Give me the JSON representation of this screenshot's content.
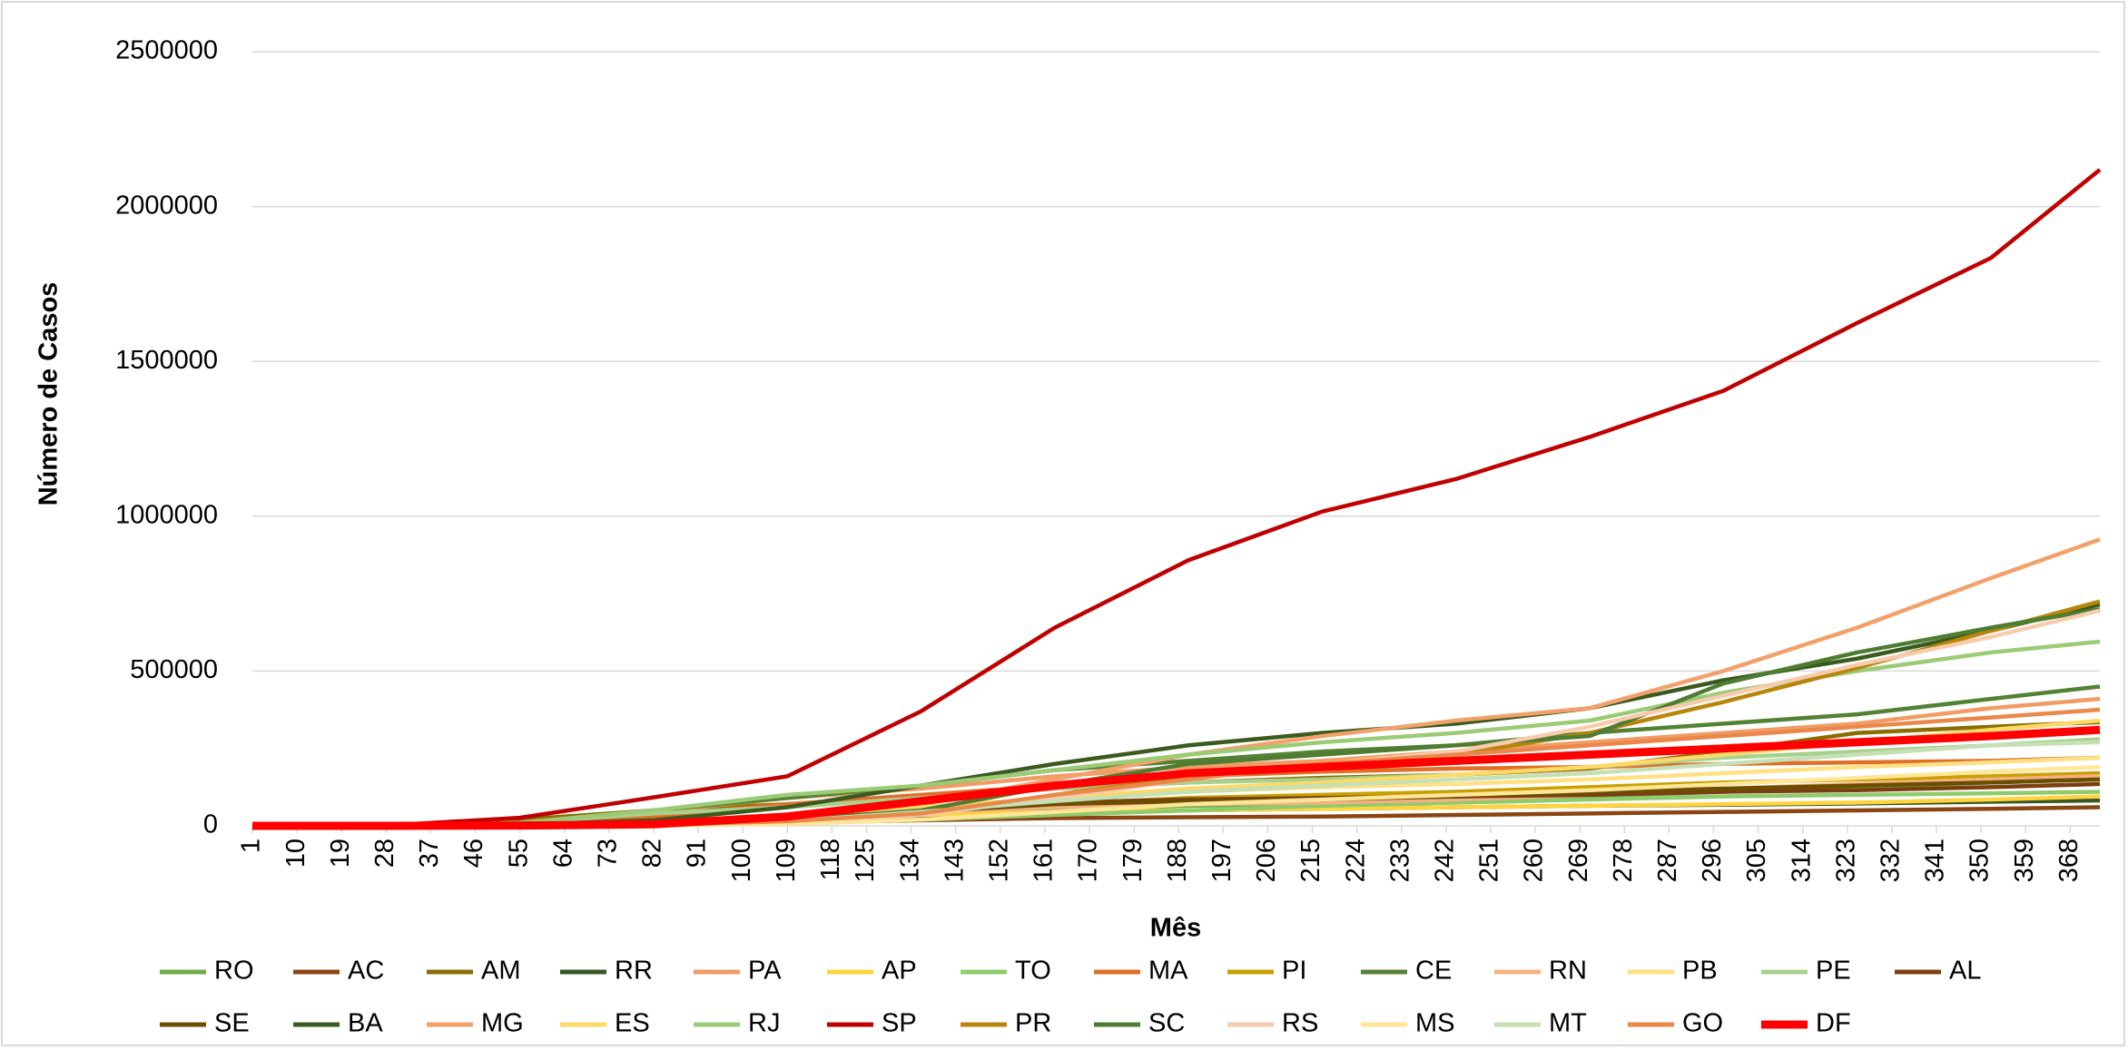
{
  "chart_data": {
    "type": "line",
    "x_label": "Mês",
    "y_label": "Número de Casos",
    "xlim": [
      1,
      374
    ],
    "ylim": [
      0,
      2500000
    ],
    "xticks": [
      1,
      10,
      19,
      28,
      37,
      46,
      55,
      64,
      73,
      82,
      91,
      100,
      109,
      118,
      125,
      134,
      143,
      152,
      161,
      170,
      179,
      188,
      197,
      206,
      215,
      224,
      233,
      242,
      251,
      260,
      269,
      278,
      287,
      296,
      305,
      314,
      323,
      332,
      341,
      350,
      359,
      368
    ],
    "yticks": [
      0,
      500000,
      1000000,
      1500000,
      2000000,
      2500000
    ],
    "grid": true,
    "legend": "bottom",
    "x": [
      1,
      28,
      55,
      82,
      109,
      136,
      163,
      190,
      217,
      244,
      271,
      298,
      325,
      352,
      374
    ],
    "series": [
      {
        "name": "RO",
        "color": "#70AD47",
        "values": [
          0,
          50,
          500,
          3000,
          10000,
          30000,
          50000,
          65000,
          70000,
          80000,
          95000,
          110000,
          125000,
          140000,
          150000
        ]
      },
      {
        "name": "AC",
        "color": "#8B4513",
        "values": [
          0,
          20,
          300,
          3000,
          10000,
          18000,
          25000,
          28000,
          30000,
          35000,
          40000,
          45000,
          50000,
          55000,
          60000
        ]
      },
      {
        "name": "AM",
        "color": "#8C6D00",
        "values": [
          0,
          500,
          20000,
          50000,
          70000,
          90000,
          120000,
          140000,
          155000,
          165000,
          185000,
          240000,
          300000,
          320000,
          335000
        ]
      },
      {
        "name": "RR",
        "color": "#375623",
        "values": [
          0,
          20,
          500,
          3000,
          12000,
          25000,
          40000,
          50000,
          55000,
          60000,
          65000,
          68000,
          72000,
          78000,
          82000
        ]
      },
      {
        "name": "PA",
        "color": "#F19C65",
        "values": [
          0,
          100,
          8000,
          45000,
          90000,
          120000,
          160000,
          190000,
          210000,
          240000,
          270000,
          300000,
          330000,
          380000,
          410000
        ]
      },
      {
        "name": "AP",
        "color": "#FFD43F",
        "values": [
          0,
          20,
          1000,
          8000,
          25000,
          35000,
          45000,
          50000,
          55000,
          60000,
          65000,
          70000,
          75000,
          85000,
          95000
        ]
      },
      {
        "name": "TO",
        "color": "#8FCB6B",
        "values": [
          0,
          20,
          200,
          2000,
          8000,
          20000,
          35000,
          50000,
          65000,
          75000,
          85000,
          95000,
          100000,
          105000,
          110000
        ]
      },
      {
        "name": "MA",
        "color": "#E07028",
        "values": [
          0,
          100,
          5000,
          30000,
          70000,
          100000,
          130000,
          160000,
          175000,
          185000,
          190000,
          200000,
          205000,
          210000,
          220000
        ]
      },
      {
        "name": "PI",
        "color": "#C9A000",
        "values": [
          0,
          50,
          500,
          5000,
          20000,
          45000,
          70000,
          90000,
          100000,
          110000,
          125000,
          140000,
          150000,
          160000,
          170000
        ]
      },
      {
        "name": "CE",
        "color": "#548235",
        "values": [
          0,
          300,
          10000,
          50000,
          90000,
          130000,
          180000,
          210000,
          240000,
          260000,
          300000,
          330000,
          360000,
          410000,
          450000
        ]
      },
      {
        "name": "RN",
        "color": "#F4B183",
        "values": [
          0,
          50,
          1000,
          5000,
          25000,
          45000,
          60000,
          70000,
          75000,
          85000,
          100000,
          120000,
          135000,
          150000,
          160000
        ]
      },
      {
        "name": "PB",
        "color": "#FFE082",
        "values": [
          0,
          50,
          1000,
          8000,
          30000,
          60000,
          90000,
          110000,
          125000,
          135000,
          150000,
          170000,
          190000,
          205000,
          220000
        ]
      },
      {
        "name": "PE",
        "color": "#A9D18E",
        "values": [
          0,
          200,
          10000,
          40000,
          60000,
          90000,
          120000,
          140000,
          150000,
          165000,
          190000,
          220000,
          240000,
          260000,
          280000
        ]
      },
      {
        "name": "AL",
        "color": "#7B3F12",
        "values": [
          0,
          50,
          1000,
          8000,
          30000,
          55000,
          75000,
          85000,
          90000,
          95000,
          100000,
          110000,
          115000,
          125000,
          135000
        ]
      },
      {
        "name": "SE",
        "color": "#6B4E00",
        "values": [
          0,
          50,
          500,
          5000,
          25000,
          45000,
          70000,
          80000,
          85000,
          95000,
          110000,
          120000,
          130000,
          140000,
          150000
        ]
      },
      {
        "name": "BA",
        "color": "#3A5A1E",
        "values": [
          0,
          200,
          4000,
          18000,
          60000,
          130000,
          200000,
          260000,
          300000,
          330000,
          380000,
          470000,
          540000,
          630000,
          715000
        ]
      },
      {
        "name": "MG",
        "color": "#F2A16A",
        "values": [
          0,
          100,
          2000,
          8000,
          30000,
          70000,
          150000,
          230000,
          290000,
          340000,
          380000,
          500000,
          640000,
          800000,
          925000
        ]
      },
      {
        "name": "ES",
        "color": "#FFD966",
        "values": [
          0,
          100,
          2000,
          10000,
          35000,
          60000,
          90000,
          120000,
          140000,
          165000,
          190000,
          230000,
          270000,
          310000,
          340000
        ]
      },
      {
        "name": "RJ",
        "color": "#9BCB75",
        "values": [
          0,
          500,
          10000,
          50000,
          100000,
          130000,
          180000,
          230000,
          270000,
          300000,
          340000,
          430000,
          500000,
          560000,
          595000
        ]
      },
      {
        "name": "SP",
        "color": "#C00000",
        "values": [
          0,
          1000,
          26000,
          92000,
          160000,
          370000,
          640000,
          858000,
          1015000,
          1120000,
          1256000,
          1405000,
          1624000,
          1834000,
          2119000
        ]
      },
      {
        "name": "PR",
        "color": "#B8860B",
        "values": [
          0,
          100,
          1000,
          3000,
          10000,
          35000,
          100000,
          160000,
          200000,
          230000,
          300000,
          400000,
          510000,
          630000,
          725000
        ]
      },
      {
        "name": "SC",
        "color": "#4E7D32",
        "values": [
          0,
          200,
          1500,
          5000,
          18000,
          50000,
          130000,
          200000,
          230000,
          260000,
          290000,
          460000,
          560000,
          640000,
          700000
        ]
      },
      {
        "name": "RS",
        "color": "#F8CBAD",
        "values": [
          0,
          100,
          1000,
          3000,
          12000,
          35000,
          90000,
          150000,
          200000,
          240000,
          320000,
          420000,
          520000,
          610000,
          695000
        ]
      },
      {
        "name": "MS",
        "color": "#FFE699",
        "values": [
          0,
          50,
          200,
          1000,
          5000,
          20000,
          45000,
          70000,
          85000,
          100000,
          115000,
          135000,
          155000,
          175000,
          190000
        ]
      },
      {
        "name": "MT",
        "color": "#C5E0B4",
        "values": [
          0,
          50,
          300,
          2000,
          15000,
          45000,
          80000,
          110000,
          130000,
          150000,
          170000,
          200000,
          230000,
          260000,
          270000
        ]
      },
      {
        "name": "GO",
        "color": "#E9884A",
        "values": [
          0,
          50,
          500,
          3000,
          15000,
          40000,
          100000,
          150000,
          200000,
          230000,
          260000,
          290000,
          320000,
          350000,
          375000
        ]
      },
      {
        "name": "DF",
        "color": "#FF0000",
        "values": [
          0,
          100,
          1000,
          5000,
          30000,
          80000,
          130000,
          170000,
          190000,
          210000,
          230000,
          250000,
          270000,
          290000,
          310000
        ]
      }
    ]
  }
}
